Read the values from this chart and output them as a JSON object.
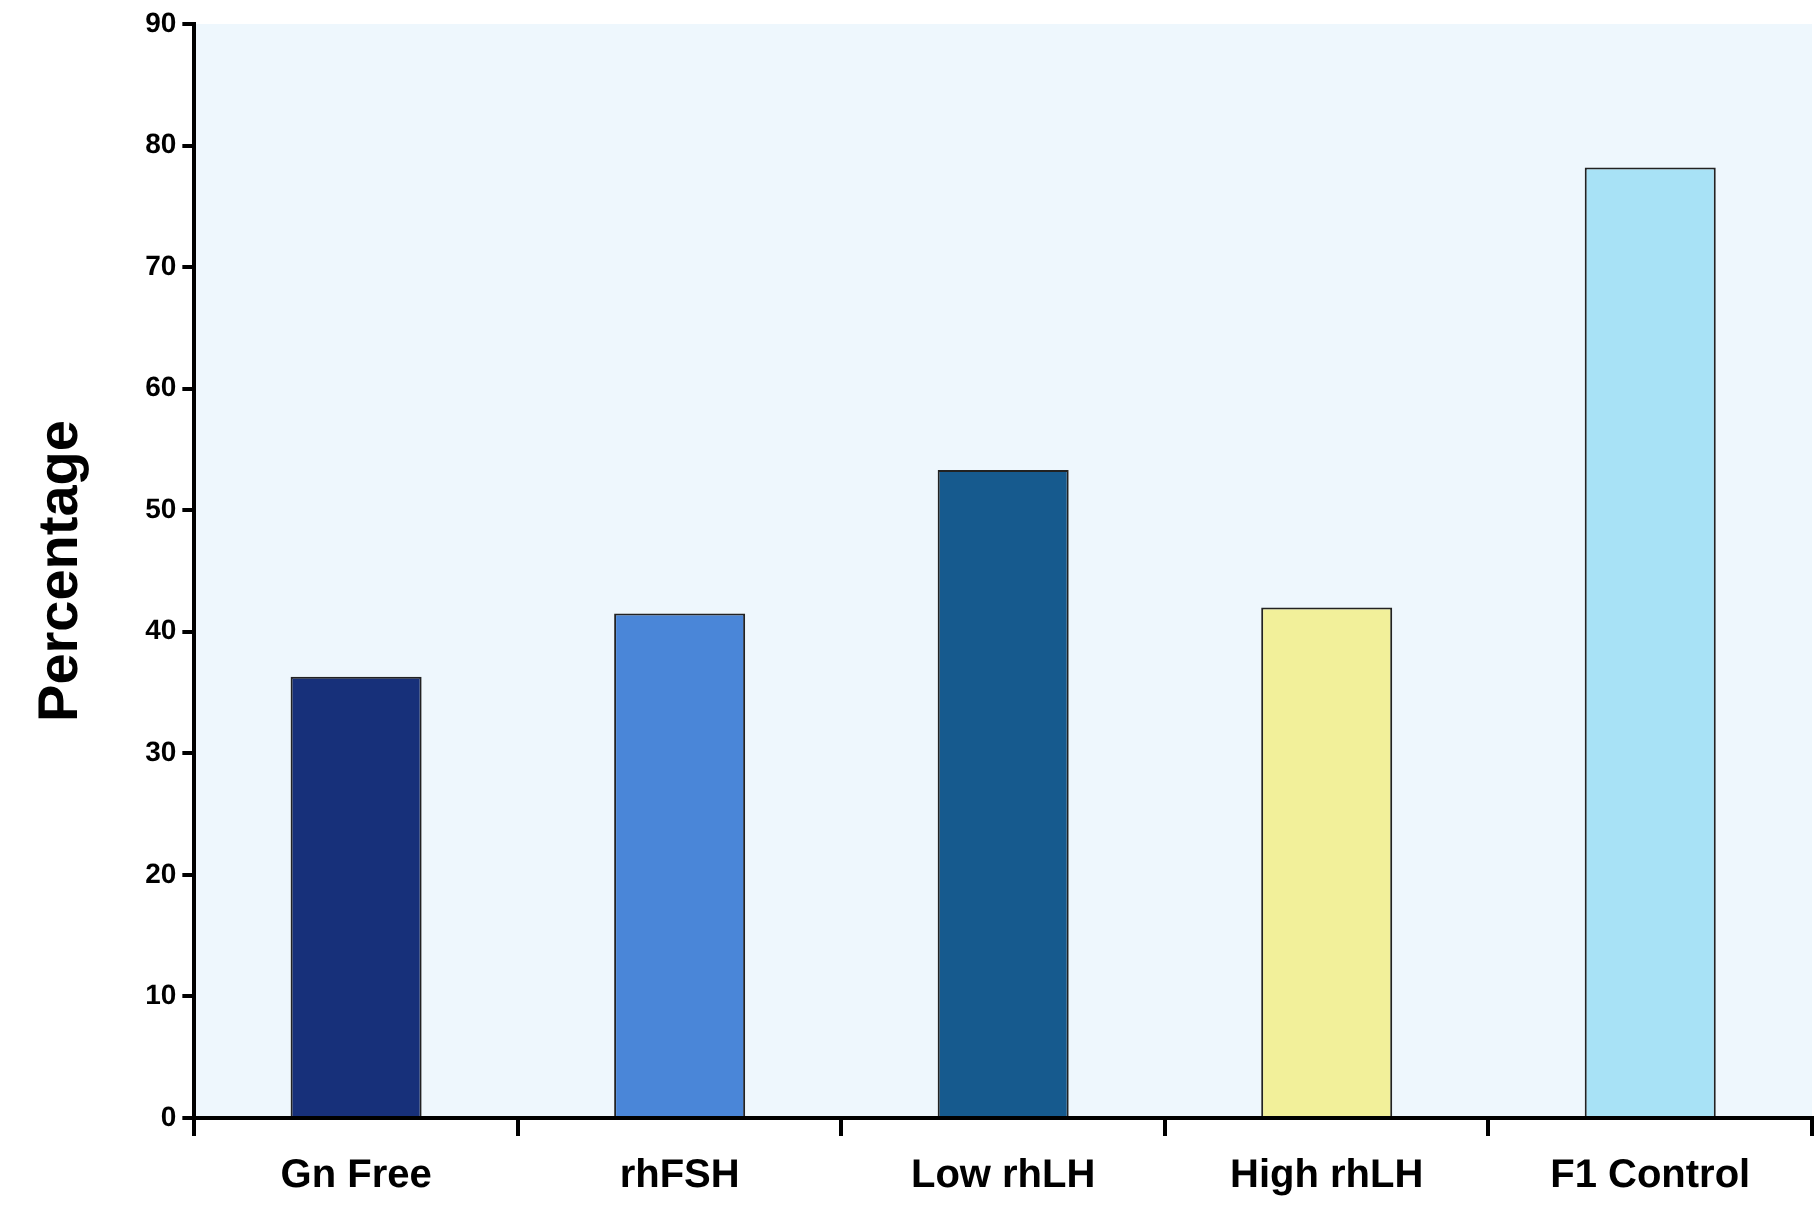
{
  "chart_data": {
    "type": "bar",
    "ylabel": "Percentage",
    "categories": [
      "Gn Free",
      "rhFSH",
      "Low rhLH",
      "High rhLH",
      "F1 Control"
    ],
    "values": [
      36.3,
      41.5,
      53.3,
      42,
      78.2
    ],
    "colors": [
      "#17307a",
      "#4a86d8",
      "#165a8e",
      "#f2f09a",
      "#a8e2f6"
    ],
    "ylim": [
      0,
      90
    ],
    "yticks": [
      0,
      10,
      20,
      30,
      40,
      50,
      60,
      70,
      80,
      90
    ],
    "grid": false,
    "legend": false
  }
}
